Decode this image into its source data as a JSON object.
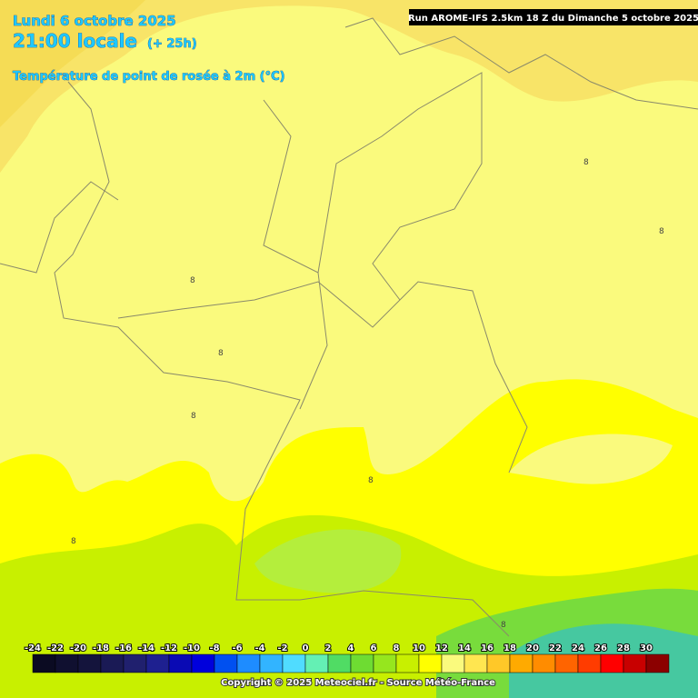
{
  "header": {
    "date": "Lundi 6 octobre 2025",
    "time": "21:00 locale",
    "lead": "(+ 25h)",
    "parameter": "Température de point de rosée à 2m (°C)",
    "run": "Run AROME-IFS 2.5km 18 Z du Dimanche 5 octobre 2025"
  },
  "map": {
    "contour_labels": [
      "8",
      "8",
      "8",
      "8",
      "8",
      "8",
      "8",
      "8"
    ]
  },
  "scale": {
    "ticks": [
      -24,
      -22,
      -20,
      -18,
      -16,
      -14,
      -12,
      -10,
      -8,
      -6,
      -4,
      -2,
      0,
      2,
      4,
      6,
      8,
      10,
      12,
      14,
      16,
      18,
      20,
      22,
      24,
      26,
      28,
      30
    ],
    "colors": [
      "#0b0b22",
      "#101030",
      "#14143c",
      "#1a1a55",
      "#20206e",
      "#1e2090",
      "#0a0ab4",
      "#0000dc",
      "#0050f0",
      "#1e8cff",
      "#32b4ff",
      "#50dcff",
      "#64f0b4",
      "#50dc64",
      "#6edc32",
      "#96e61e",
      "#c8f000",
      "#ffff00",
      "#fafa7d",
      "#ffe650",
      "#ffc828",
      "#ffaa00",
      "#ff8c00",
      "#ff6400",
      "#ff3c00",
      "#ff0000",
      "#c80000",
      "#8c0000"
    ]
  },
  "footer": {
    "copyright": "Copyright © 2025 Meteociel.fr - Source Météo-France"
  }
}
